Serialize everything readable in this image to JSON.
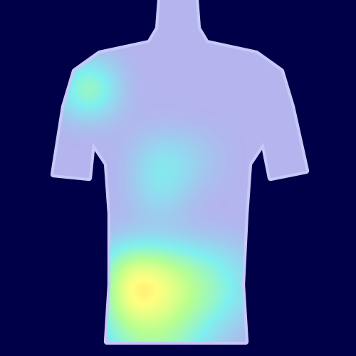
{
  "chart_data": {
    "type": "heatmap",
    "tick_labels": false,
    "color_range": [
      0,
      1
    ],
    "cells": [
      [
        0,
        0,
        0,
        0,
        0,
        0,
        0,
        0,
        0,
        0
      ],
      [
        0,
        0,
        0,
        0,
        0,
        0,
        0,
        0,
        0,
        0
      ],
      [
        0,
        0,
        0.9,
        0,
        0,
        0,
        0,
        0,
        0,
        0
      ],
      [
        0,
        0,
        0,
        0,
        0,
        0,
        0,
        0,
        0,
        0
      ],
      [
        0,
        0,
        0,
        0,
        0.4,
        0.2,
        0,
        0,
        0,
        0
      ],
      [
        0,
        0,
        0,
        0,
        0.35,
        0,
        0,
        0,
        0,
        0
      ],
      [
        0,
        0,
        0,
        0,
        0,
        0,
        0,
        0,
        0,
        0
      ],
      [
        0,
        0,
        0,
        0.8,
        0.75,
        0.5,
        0.3,
        0,
        0,
        0
      ],
      [
        0,
        0,
        0,
        0.9,
        0.8,
        0.55,
        0.35,
        0,
        0,
        0
      ],
      [
        0,
        0,
        0,
        0.4,
        0.5,
        0.3,
        0,
        0,
        0,
        0
      ]
    ]
  }
}
